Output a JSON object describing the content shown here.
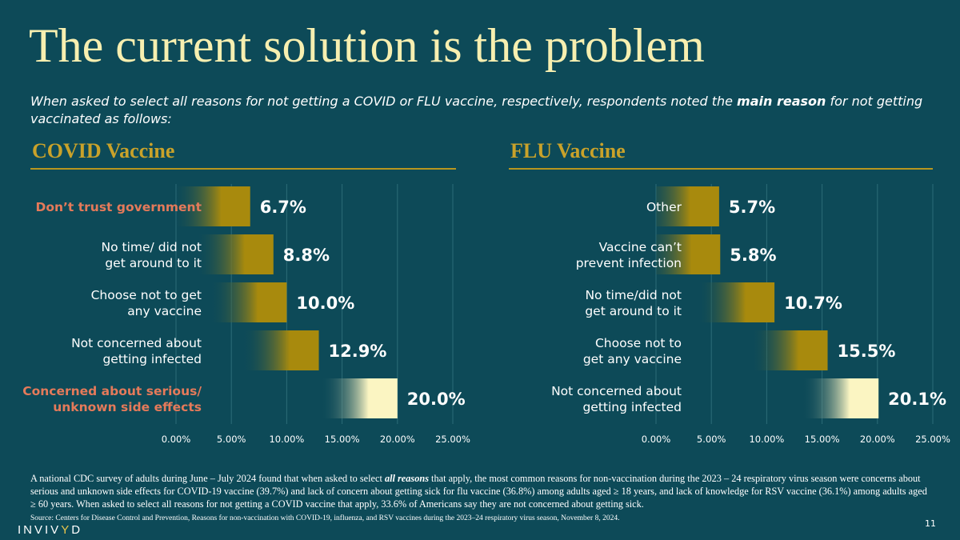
{
  "slide": {
    "title": "The current solution is the problem",
    "subtitle_pre": "When asked to select all reasons for not getting a COVID or FLU vaccine, respectively, respondents noted the ",
    "subtitle_bold": "main reason",
    "subtitle_post": " for not getting vaccinated as follows:",
    "page_number": "11"
  },
  "colors": {
    "background": "#0d4a58",
    "title": "#f7efb0",
    "section_title": "#c9a22a",
    "highlight_label": "#e57a5a",
    "bar_gold": "#a88a0d",
    "bar_top": "#fbf5c2"
  },
  "chart_data": [
    {
      "type": "bar",
      "orientation": "horizontal",
      "title": "COVID Vaccine",
      "categories": [
        "Don’t trust government",
        "No time/ did not get around to it",
        "Choose not to get any vaccine",
        "Not concerned about getting infected",
        "Concerned about serious/ unknown side effects"
      ],
      "label_lines": [
        [
          "Don’t trust government"
        ],
        [
          "No time/ did not",
          "get around to it"
        ],
        [
          "Choose not to get",
          "any vaccine"
        ],
        [
          "Not concerned about",
          "getting infected"
        ],
        [
          "Concerned about serious/",
          "unknown side effects"
        ]
      ],
      "highlighted": [
        true,
        false,
        false,
        false,
        true
      ],
      "values": [
        6.7,
        8.8,
        10.0,
        12.9,
        20.0
      ],
      "value_labels": [
        "6.7%",
        "8.8%",
        "10.0%",
        "12.9%",
        "20.0%"
      ],
      "xlim": [
        0,
        25
      ],
      "ticks": [
        "0.00%",
        "5.00%",
        "10.00%",
        "15.00%",
        "20.00%",
        "25.00%"
      ]
    },
    {
      "type": "bar",
      "orientation": "horizontal",
      "title": "FLU Vaccine",
      "categories": [
        "Other",
        "Vaccine can’t prevent infection",
        "No time/did not get around to it",
        "Choose not to get any vaccine",
        "Not concerned about getting infected"
      ],
      "label_lines": [
        [
          "Other"
        ],
        [
          "Vaccine can’t",
          "prevent infection"
        ],
        [
          "No time/did not",
          "get around to it"
        ],
        [
          "Choose not to",
          "get any vaccine"
        ],
        [
          "Not concerned about",
          "getting infected"
        ]
      ],
      "highlighted": [
        false,
        false,
        false,
        false,
        false
      ],
      "values": [
        5.7,
        5.8,
        10.7,
        15.5,
        20.1
      ],
      "value_labels": [
        "5.7%",
        "5.8%",
        "10.7%",
        "15.5%",
        "20.1%"
      ],
      "xlim": [
        0,
        25
      ],
      "ticks": [
        "0.00%",
        "5.00%",
        "10.00%",
        "15.00%",
        "20.00%",
        "25.00%"
      ]
    }
  ],
  "footnote": {
    "pre": "A national CDC survey of adults during June – July 2024 found that when asked to select ",
    "bold": "all reasons",
    "post": " that apply, the most common reasons for non-vaccination during the 2023 – 24 respiratory virus season were concerns about serious and unknown side effects for COVID-19 vaccine (39.7%) and lack of concern about getting sick for flu vaccine (36.8%) among adults aged ≥ 18 years, and lack of knowledge for RSV vaccine (36.1%) among adults aged ≥ 60 years. When asked to select all reasons for not getting a COVID vaccine that apply, 33.6% of Americans say they are not concerned about getting sick.",
    "source": "Source: Centers for Disease Control and Prevention, Reasons for non-vaccination with COVID-19, influenza, and RSV vaccines during the 2023–24 respiratory virus season, November 8, 2024."
  },
  "logo": {
    "text_a": "INVIV",
    "text_accent": "Y",
    "text_b": "D"
  }
}
